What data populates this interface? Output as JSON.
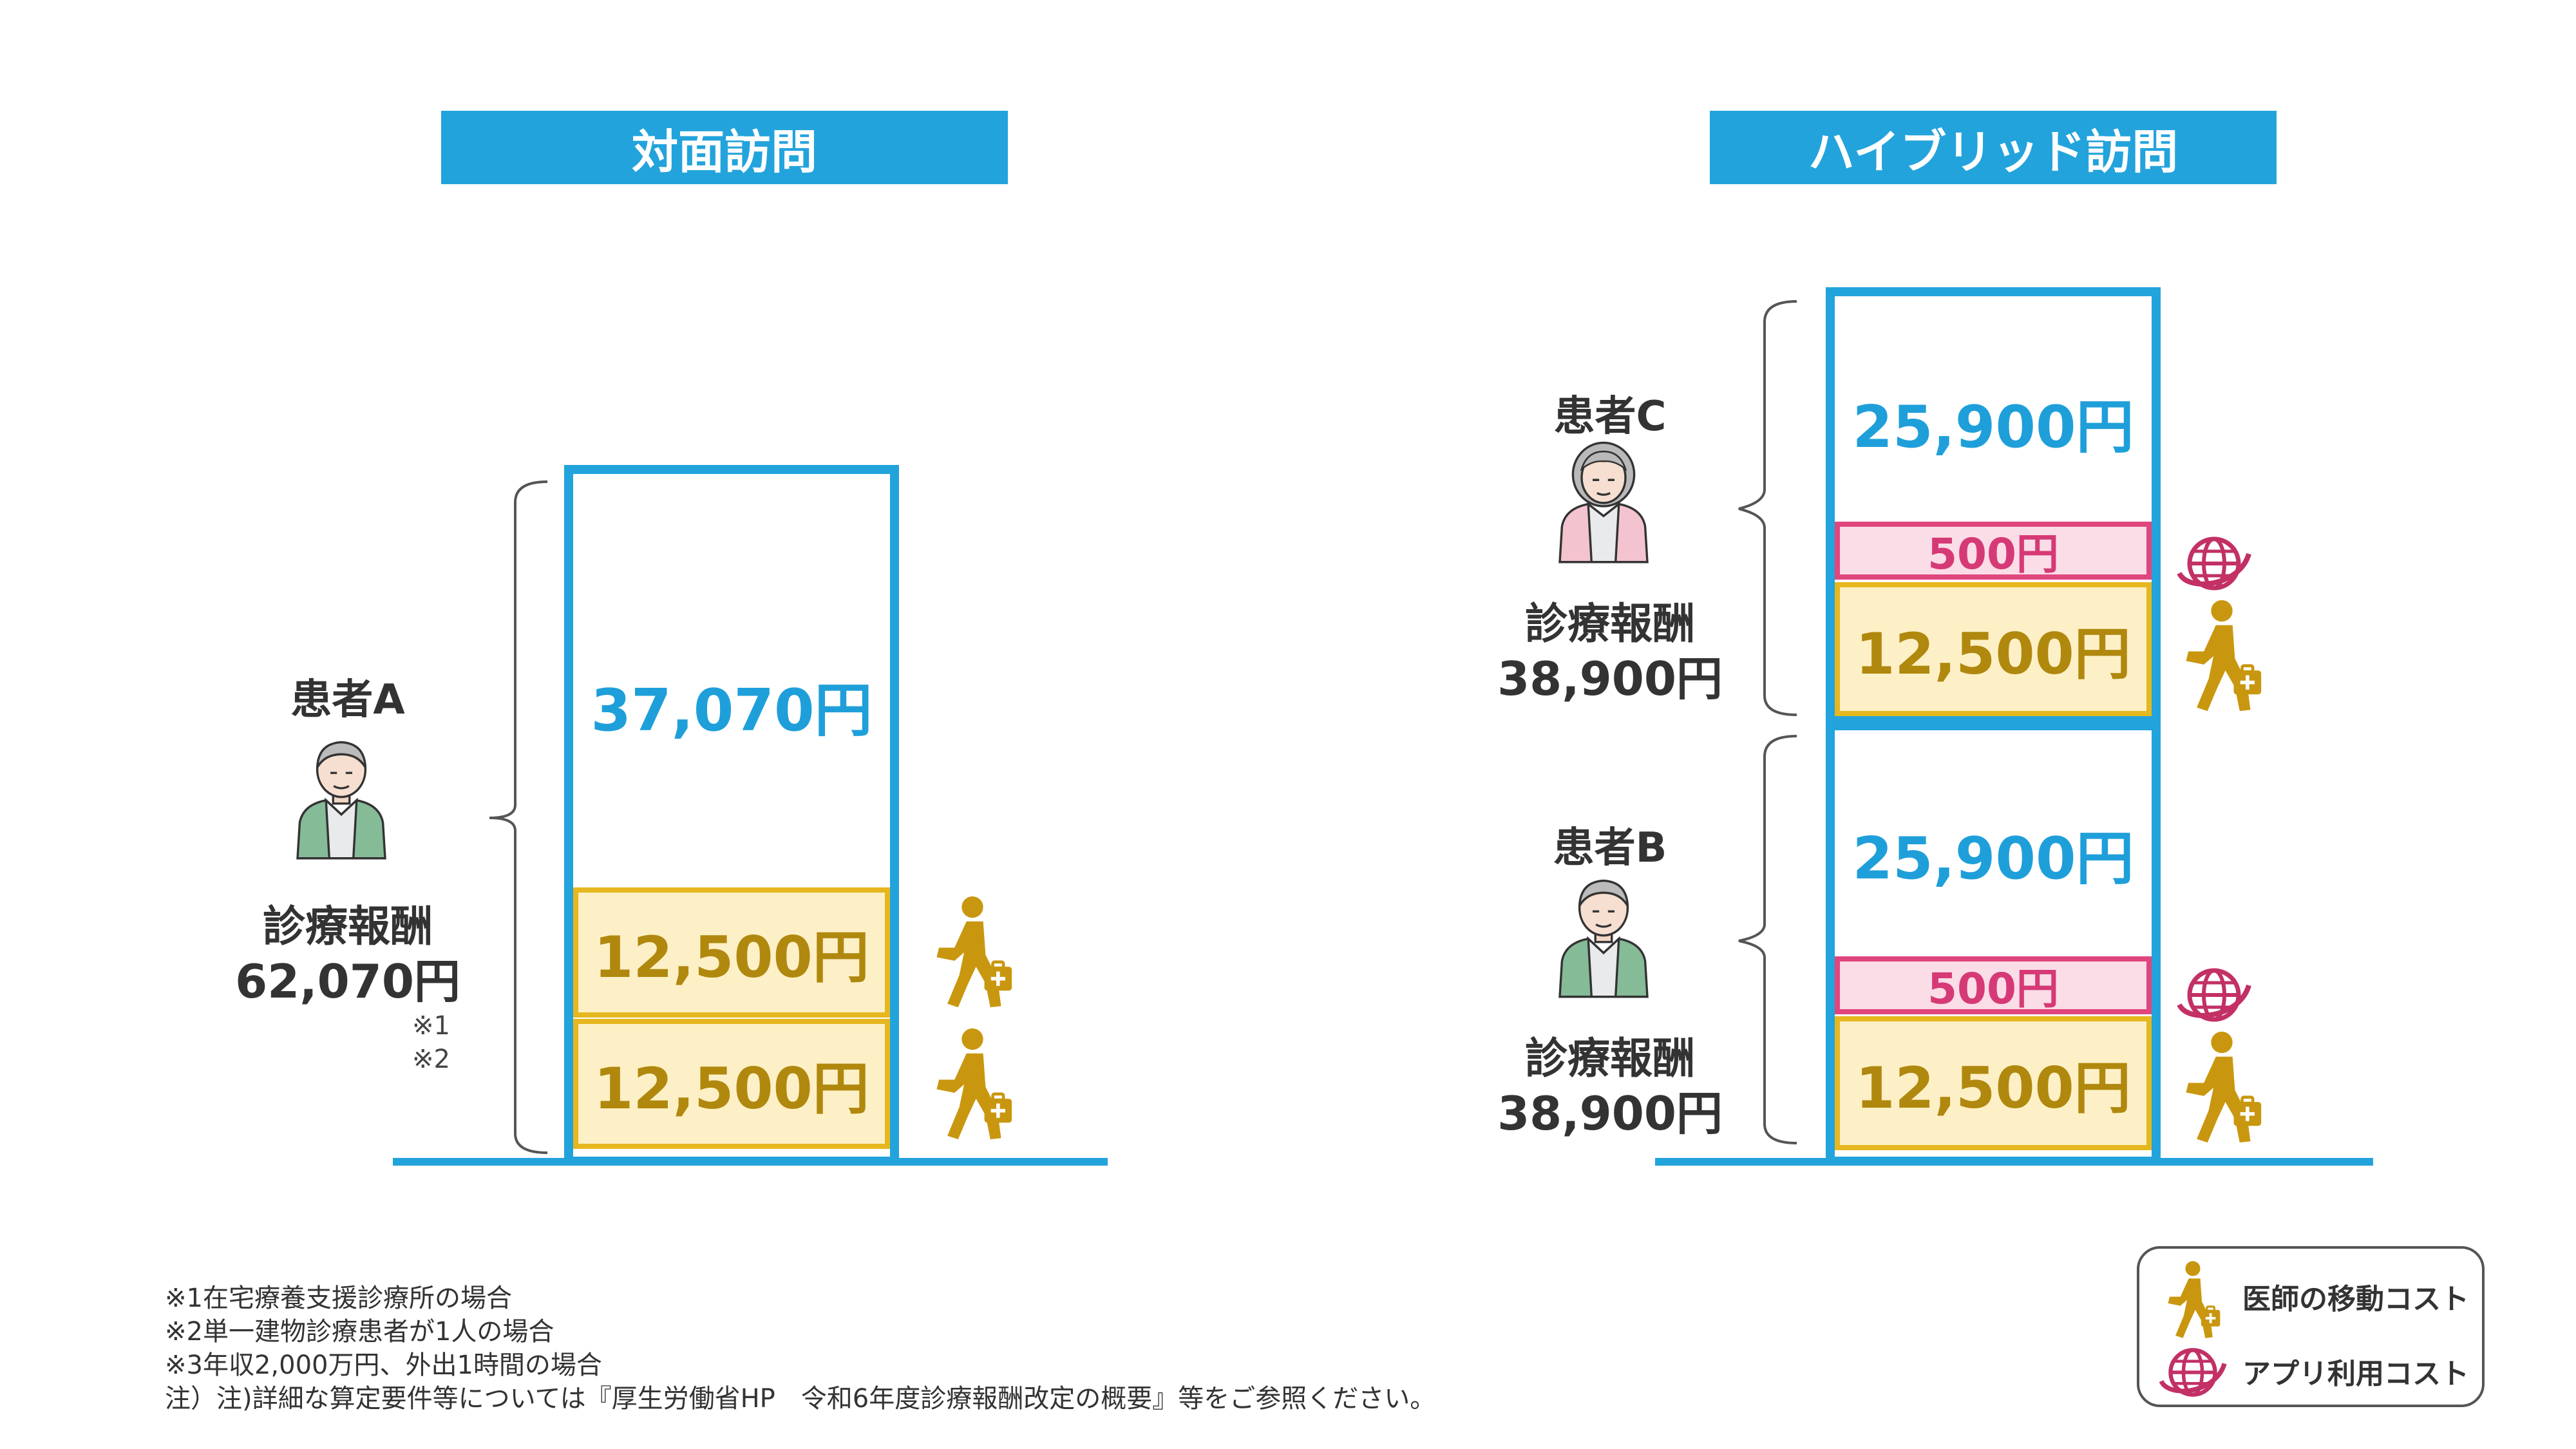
{
  "left": {
    "header": "対面訪問",
    "patient_name": "患者A",
    "fee_label": "診療報酬",
    "fee_total": "62,070円",
    "top_value": "37,070円",
    "travel_values": [
      "12,500円",
      "12,500円"
    ],
    "notes": [
      "※1",
      "※2"
    ]
  },
  "right": {
    "header": "ハイブリッド訪問",
    "patient_c": {
      "name": "患者C",
      "fee_label": "診療報酬",
      "fee_total": "38,900円",
      "top_value": "25,900円",
      "app_value": "500円",
      "travel_value": "12,500円"
    },
    "patient_b": {
      "name": "患者B",
      "fee_label": "診療報酬",
      "fee_total": "38,900円",
      "top_value": "25,900円",
      "app_value": "500円",
      "travel_value": "12,500円"
    }
  },
  "legend": {
    "items": [
      {
        "icon": "walking-doctor-icon",
        "label": "医師の移動コスト"
      },
      {
        "icon": "globe-icon",
        "label": "アプリ利用コスト"
      }
    ]
  },
  "footnotes": [
    "※1在宅療養支援診療所の場合",
    "※2単一建物診療患者が1人の場合",
    "※3年収2,000万円、外出1時間の場合",
    "注）注)詳細な算定要件等については『厚生労働省HP　令和6年度診療報酬改定の概要』等をご参照ください。"
  ],
  "colors": {
    "accent_blue": "#23a3dc",
    "travel_gold": "#c9970f",
    "app_pink": "#d63a76",
    "travel_fill": "#fdf0c6",
    "app_fill": "#fbdde7"
  }
}
